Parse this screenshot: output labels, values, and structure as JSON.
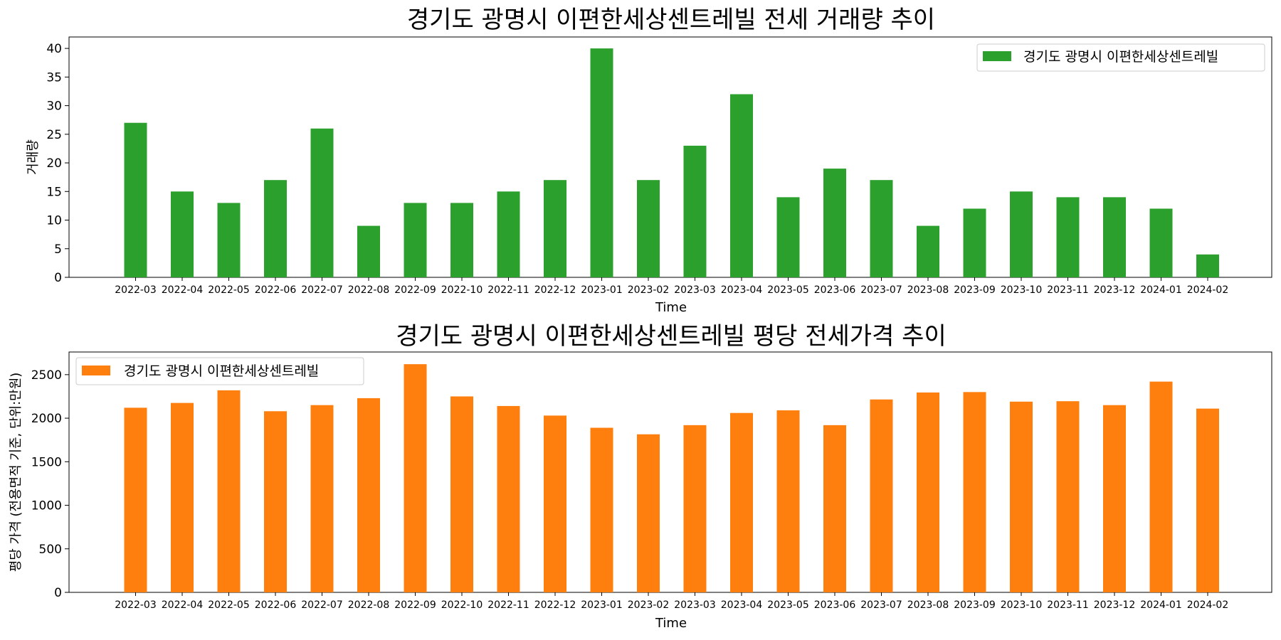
{
  "colors": {
    "volume_bar": "#2ca02c",
    "price_bar": "#ff7f0e"
  },
  "chart_data": [
    {
      "type": "bar",
      "title": "경기도 광명시 이편한세상센트레빌 전세 거래량 추이",
      "xlabel": "Time",
      "ylabel": "거래량",
      "categories": [
        "2022-03",
        "2022-04",
        "2022-05",
        "2022-06",
        "2022-07",
        "2022-08",
        "2022-09",
        "2022-10",
        "2022-11",
        "2022-12",
        "2023-01",
        "2023-02",
        "2023-03",
        "2023-04",
        "2023-05",
        "2023-06",
        "2023-07",
        "2023-08",
        "2023-09",
        "2023-10",
        "2023-11",
        "2023-12",
        "2024-01",
        "2024-02"
      ],
      "series": [
        {
          "name": "경기도 광명시 이편한세상센트레빌",
          "color": "#2ca02c",
          "values": [
            27,
            15,
            13,
            17,
            26,
            9,
            13,
            13,
            15,
            17,
            40,
            17,
            23,
            32,
            14,
            19,
            17,
            9,
            12,
            15,
            14,
            14,
            12,
            4
          ]
        }
      ],
      "ylim": [
        0,
        42
      ],
      "yticks": [
        0,
        5,
        10,
        15,
        20,
        25,
        30,
        35,
        40
      ],
      "legend": "top-right",
      "grid": false
    },
    {
      "type": "bar",
      "title": "경기도 광명시 이편한세상센트레빌 평당 전세가격 추이",
      "xlabel": "Time",
      "ylabel": "평당 가격 (전용면적 기준, 단위:만원)",
      "categories": [
        "2022-03",
        "2022-04",
        "2022-05",
        "2022-06",
        "2022-07",
        "2022-08",
        "2022-09",
        "2022-10",
        "2022-11",
        "2022-12",
        "2023-01",
        "2023-02",
        "2023-03",
        "2023-04",
        "2023-05",
        "2023-06",
        "2023-07",
        "2023-08",
        "2023-09",
        "2023-10",
        "2023-11",
        "2023-12",
        "2024-01",
        "2024-02"
      ],
      "series": [
        {
          "name": "경기도 광명시 이편한세상센트레빌",
          "color": "#ff7f0e",
          "values": [
            2120,
            2175,
            2320,
            2080,
            2150,
            2230,
            2620,
            2250,
            2140,
            2030,
            1890,
            1815,
            1920,
            2060,
            2090,
            1920,
            2215,
            2295,
            2300,
            2190,
            2195,
            2150,
            2420,
            2110
          ]
        }
      ],
      "ylim": [
        0,
        2760
      ],
      "yticks": [
        0,
        500,
        1000,
        1500,
        2000,
        2500
      ],
      "legend": "top-left",
      "grid": false
    }
  ]
}
